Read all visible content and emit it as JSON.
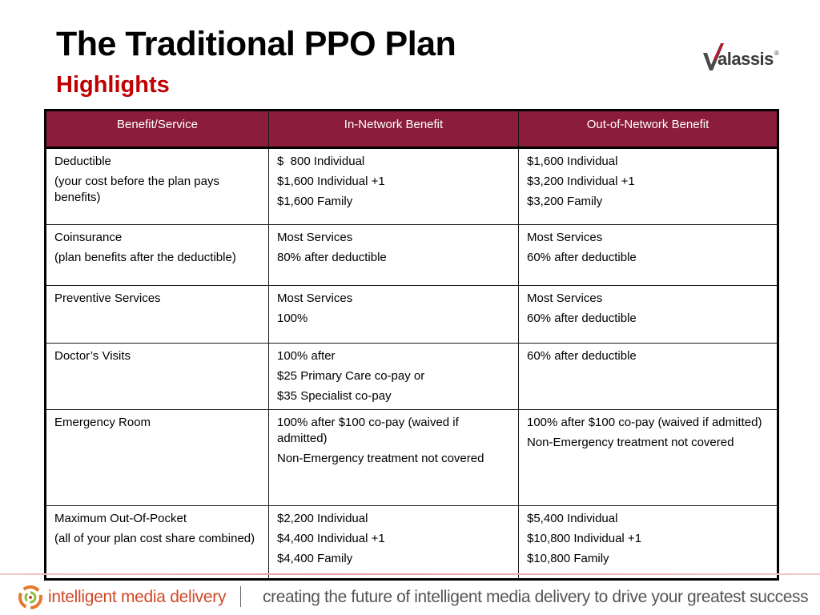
{
  "header": {
    "title": "The Traditional PPO Plan",
    "subtitle": "Highlights",
    "logo_text": "alassis",
    "logo_mark": "®"
  },
  "table": {
    "columns": [
      "Benefit/Service",
      "In-Network Benefit",
      "Out-of-Network Benefit"
    ],
    "rows": [
      {
        "benefit": [
          "Deductible",
          "(your cost before the plan pays benefits)"
        ],
        "in_network": [
          "$  800 Individual",
          "$1,600 Individual +1",
          "$1,600 Family"
        ],
        "out_network": [
          "$1,600 Individual",
          "$3,200 Individual +1",
          "$3,200 Family"
        ]
      },
      {
        "benefit": [
          "Coinsurance",
          "(plan benefits after the deductible)"
        ],
        "in_network": [
          "Most Services",
          "80% after deductible"
        ],
        "out_network": [
          "Most Services",
          "60% after deductible"
        ]
      },
      {
        "benefit": [
          "Preventive Services"
        ],
        "in_network": [
          "Most Services",
          "100%"
        ],
        "out_network": [
          "Most Services",
          "60% after deductible"
        ]
      },
      {
        "benefit": [
          "Doctor’s Visits"
        ],
        "in_network": [
          "100% after",
          "$25 Primary Care co-pay or",
          "$35 Specialist co-pay"
        ],
        "out_network": [
          "60% after deductible"
        ]
      },
      {
        "benefit": [
          "Emergency Room"
        ],
        "in_network": [
          "100% after $100 co-pay (waived if admitted)",
          "Non-Emergency treatment not covered"
        ],
        "out_network": [
          "100% after $100 co-pay (waived if admitted)",
          "Non-Emergency treatment not covered"
        ]
      },
      {
        "benefit": [
          "Maximum Out-Of-Pocket",
          "(all of your plan cost share combined)"
        ],
        "in_network": [
          "$2,200 Individual",
          "$4,400 Individual +1",
          "$4,400 Family"
        ],
        "out_network": [
          "$5,400 Individual",
          "$10,800 Individual +1",
          "$10,800 Family"
        ]
      }
    ]
  },
  "footer": {
    "brand": "intelligent media delivery",
    "tagline": "creating the future of intelligent media delivery to drive your greatest success"
  },
  "colors": {
    "header_bg": "#8b1c3a",
    "subtitle": "#c00000",
    "footer_brand": "#d04a27"
  }
}
